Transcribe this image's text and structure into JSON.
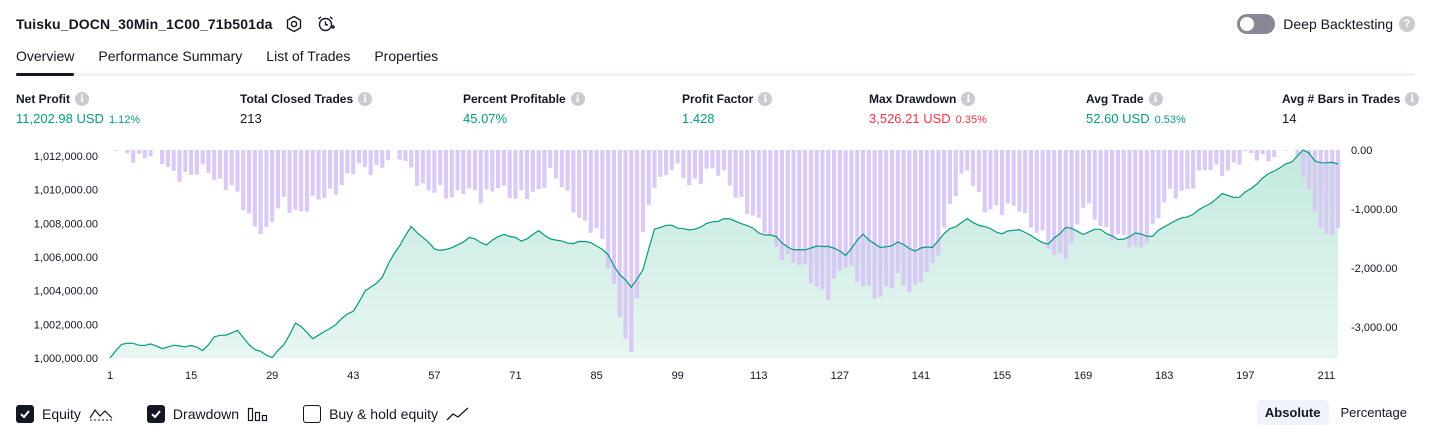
{
  "header": {
    "strategy_name": "Tuisku_DOCN_30Min_1C00_71b501da",
    "deep_backtesting_label": "Deep Backtesting",
    "deep_backtesting_enabled": false
  },
  "tabs": [
    {
      "label": "Overview",
      "active": true
    },
    {
      "label": "Performance Summary",
      "active": false
    },
    {
      "label": "List of Trades",
      "active": false
    },
    {
      "label": "Properties",
      "active": false
    }
  ],
  "stats": [
    {
      "label": "Net Profit",
      "value": "11,202.98 USD",
      "pct": "1.12%",
      "color": "green"
    },
    {
      "label": "Total Closed Trades",
      "value": "213",
      "pct": "",
      "color": "dark"
    },
    {
      "label": "Percent Profitable",
      "value": "45.07%",
      "pct": "",
      "color": "green"
    },
    {
      "label": "Profit Factor",
      "value": "1.428",
      "pct": "",
      "color": "green"
    },
    {
      "label": "Max Drawdown",
      "value": "3,526.21 USD",
      "pct": "0.35%",
      "color": "red"
    },
    {
      "label": "Avg Trade",
      "value": "52.60 USD",
      "pct": "0.53%",
      "color": "green"
    },
    {
      "label": "Avg # Bars in Trades",
      "value": "14",
      "pct": "",
      "color": "dark"
    }
  ],
  "chart_data": {
    "type": "area",
    "left_axis_ticks": [
      "1,012,000.00",
      "1,010,000.00",
      "1,008,000.00",
      "1,006,000.00",
      "1,004,000.00",
      "1,002,000.00",
      "1,000,000.00"
    ],
    "left_ylim": [
      1000000,
      1012000
    ],
    "right_axis_ticks": [
      "0.00",
      "-1,000.00",
      "-2,000.00",
      "-3,000.00"
    ],
    "right_ylim": [
      -3526.21,
      0
    ],
    "x_tick_labels": [
      "1",
      "15",
      "29",
      "43",
      "57",
      "71",
      "85",
      "99",
      "113",
      "127",
      "141",
      "155",
      "169",
      "183",
      "197",
      "211"
    ],
    "trade_count": 213,
    "equity_control_points": [
      [
        1,
        1000000
      ],
      [
        3,
        1000800
      ],
      [
        8,
        1000800
      ],
      [
        10,
        1000600
      ],
      [
        15,
        1000700
      ],
      [
        17,
        1000500
      ],
      [
        19,
        1001200
      ],
      [
        23,
        1001500
      ],
      [
        26,
        1000500
      ],
      [
        29,
        1000100
      ],
      [
        31,
        1000700
      ],
      [
        33,
        1002000
      ],
      [
        36,
        1001200
      ],
      [
        38,
        1001500
      ],
      [
        43,
        1002700
      ],
      [
        45,
        1003800
      ],
      [
        48,
        1004700
      ],
      [
        50,
        1006000
      ],
      [
        53,
        1007500
      ],
      [
        55,
        1007000
      ],
      [
        57,
        1006300
      ],
      [
        60,
        1006300
      ],
      [
        63,
        1006900
      ],
      [
        66,
        1006600
      ],
      [
        69,
        1007200
      ],
      [
        72,
        1006700
      ],
      [
        75,
        1007300
      ],
      [
        78,
        1006800
      ],
      [
        81,
        1006600
      ],
      [
        84,
        1006700
      ],
      [
        87,
        1006000
      ],
      [
        89,
        1004800
      ],
      [
        91,
        1004100
      ],
      [
        93,
        1005000
      ],
      [
        95,
        1007500
      ],
      [
        98,
        1007700
      ],
      [
        101,
        1007300
      ],
      [
        104,
        1007700
      ],
      [
        107,
        1008100
      ],
      [
        110,
        1007800
      ],
      [
        113,
        1007200
      ],
      [
        116,
        1007000
      ],
      [
        119,
        1006200
      ],
      [
        122,
        1006300
      ],
      [
        125,
        1006500
      ],
      [
        128,
        1006000
      ],
      [
        131,
        1007100
      ],
      [
        134,
        1006300
      ],
      [
        137,
        1006700
      ],
      [
        140,
        1006200
      ],
      [
        143,
        1006400
      ],
      [
        146,
        1007500
      ],
      [
        149,
        1008000
      ],
      [
        152,
        1007500
      ],
      [
        155,
        1007200
      ],
      [
        158,
        1007500
      ],
      [
        160,
        1007000
      ],
      [
        163,
        1006500
      ],
      [
        166,
        1007600
      ],
      [
        169,
        1007200
      ],
      [
        172,
        1007400
      ],
      [
        175,
        1006800
      ],
      [
        178,
        1007200
      ],
      [
        181,
        1007000
      ],
      [
        184,
        1007800
      ],
      [
        187,
        1008200
      ],
      [
        190,
        1008700
      ],
      [
        193,
        1009400
      ],
      [
        196,
        1009300
      ],
      [
        199,
        1010100
      ],
      [
        202,
        1010800
      ],
      [
        205,
        1011300
      ],
      [
        207,
        1012200
      ],
      [
        209,
        1011400
      ],
      [
        211,
        1011200
      ],
      [
        213,
        1011200
      ]
    ],
    "drawdown_control_points": [
      [
        1,
        0
      ],
      [
        5,
        -50
      ],
      [
        10,
        -200
      ],
      [
        15,
        -500
      ],
      [
        18,
        -300
      ],
      [
        22,
        -700
      ],
      [
        25,
        -1100
      ],
      [
        28,
        -1400
      ],
      [
        31,
        -900
      ],
      [
        34,
        -1000
      ],
      [
        37,
        -900
      ],
      [
        40,
        -600
      ],
      [
        43,
        -400
      ],
      [
        46,
        -300
      ],
      [
        50,
        -100
      ],
      [
        53,
        -300
      ],
      [
        56,
        -700
      ],
      [
        59,
        -800
      ],
      [
        62,
        -600
      ],
      [
        65,
        -900
      ],
      [
        68,
        -500
      ],
      [
        71,
        -900
      ],
      [
        74,
        -700
      ],
      [
        77,
        -400
      ],
      [
        80,
        -800
      ],
      [
        83,
        -1200
      ],
      [
        86,
        -1600
      ],
      [
        88,
        -2300
      ],
      [
        89,
        -2700
      ],
      [
        91,
        -3526
      ],
      [
        93,
        -1500
      ],
      [
        95,
        -500
      ],
      [
        98,
        -300
      ],
      [
        101,
        -600
      ],
      [
        104,
        -300
      ],
      [
        107,
        -500
      ],
      [
        110,
        -800
      ],
      [
        113,
        -1300
      ],
      [
        116,
        -1600
      ],
      [
        119,
        -1900
      ],
      [
        122,
        -2200
      ],
      [
        125,
        -2400
      ],
      [
        128,
        -2000
      ],
      [
        131,
        -2200
      ],
      [
        134,
        -2600
      ],
      [
        137,
        -2100
      ],
      [
        140,
        -2400
      ],
      [
        143,
        -2000
      ],
      [
        146,
        -900
      ],
      [
        149,
        -400
      ],
      [
        152,
        -900
      ],
      [
        155,
        -1100
      ],
      [
        158,
        -900
      ],
      [
        161,
        -1400
      ],
      [
        164,
        -1800
      ],
      [
        167,
        -1600
      ],
      [
        169,
        -1000
      ],
      [
        172,
        -1200
      ],
      [
        175,
        -1500
      ],
      [
        178,
        -1700
      ],
      [
        181,
        -1300
      ],
      [
        184,
        -800
      ],
      [
        187,
        -600
      ],
      [
        190,
        -400
      ],
      [
        193,
        -300
      ],
      [
        196,
        -200
      ],
      [
        199,
        -100
      ],
      [
        202,
        -50
      ],
      [
        205,
        0
      ],
      [
        207,
        -300
      ],
      [
        209,
        -1000
      ],
      [
        211,
        -1600
      ],
      [
        213,
        -1300
      ]
    ]
  },
  "legend": [
    {
      "label": "Equity",
      "checked": true,
      "icon": "equity-line-icon"
    },
    {
      "label": "Drawdown",
      "checked": true,
      "icon": "drawdown-bars-icon"
    },
    {
      "label": "Buy & hold equity",
      "checked": false,
      "icon": "buy-hold-line-icon"
    }
  ],
  "modes": [
    {
      "label": "Absolute",
      "active": true
    },
    {
      "label": "Percentage",
      "active": false
    }
  ],
  "colors": {
    "equity_line": "#089981",
    "equity_fill": "#cdeee6",
    "drawdown_bar": "#d8c4f5",
    "drawdown_bar_overlap": "#b6b1e6"
  }
}
